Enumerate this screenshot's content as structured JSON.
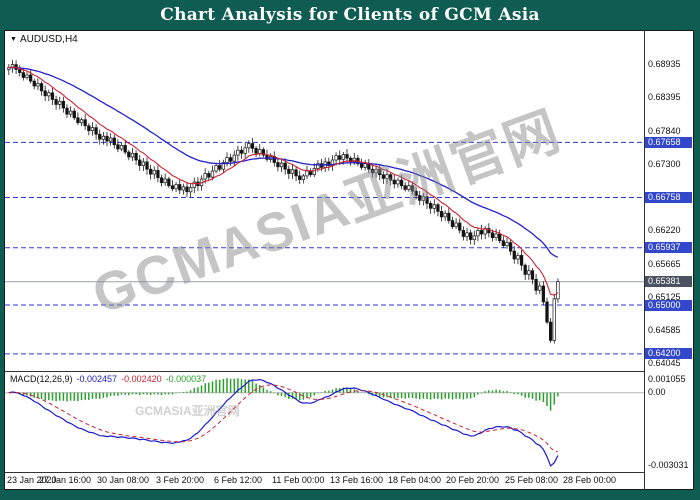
{
  "header": {
    "title": "Chart Analysis for Clients of GCM Asia"
  },
  "watermark": {
    "text": "GCMASIA亚洲官网"
  },
  "symbol_label": "AUDUSD,H4",
  "colors": {
    "banner": "#0e5c52",
    "level_line": "#2e3bd6",
    "level_box": "#3347cc",
    "current_box": "#4a5160",
    "ma_fast": "#cc2233",
    "ma_slow": "#2222cc",
    "macd_line": "#1a1acc",
    "signal_line": "#cc2233",
    "histogram": "#2ca02c",
    "bull": "#ffffff",
    "bear": "#111111",
    "watermark": "#8c8c8c"
  },
  "chart_data": {
    "type": "candlestick",
    "symbol": "AUDUSD",
    "timeframe": "H4",
    "title": "AUDUSD,H4",
    "x_labels": [
      "23 Jan 2020",
      "27 Jan 16:00",
      "30 Jan 08:00",
      "3 Feb 20:00",
      "6 Feb 12:00",
      "11 Feb 00:00",
      "13 Feb 16:00",
      "18 Feb 04:00",
      "20 Feb 20:00",
      "25 Feb 08:00",
      "28 Feb 00:00"
    ],
    "bars_per_label": 16,
    "first_open": 0.6885,
    "closes": [
      0.6888,
      0.6893,
      0.6885,
      0.688,
      0.6872,
      0.6876,
      0.6866,
      0.6858,
      0.6862,
      0.685,
      0.6842,
      0.6847,
      0.6836,
      0.6828,
      0.6833,
      0.6822,
      0.6812,
      0.6817,
      0.6806,
      0.6798,
      0.6803,
      0.6793,
      0.6785,
      0.679,
      0.6779,
      0.6771,
      0.6776,
      0.6768,
      0.6773,
      0.6762,
      0.6755,
      0.6761,
      0.675,
      0.6742,
      0.6748,
      0.6737,
      0.6728,
      0.6734,
      0.6722,
      0.6714,
      0.672,
      0.6708,
      0.67,
      0.6706,
      0.6695,
      0.669,
      0.6697,
      0.6688,
      0.6693,
      0.6685,
      0.6692,
      0.6701,
      0.6695,
      0.6706,
      0.6715,
      0.6709,
      0.6719,
      0.6728,
      0.6722,
      0.6733,
      0.6741,
      0.6735,
      0.6745,
      0.6753,
      0.6748,
      0.6757,
      0.6764,
      0.6756,
      0.6748,
      0.6754,
      0.6745,
      0.6738,
      0.6743,
      0.6733,
      0.6726,
      0.6732,
      0.6722,
      0.6715,
      0.6721,
      0.6711,
      0.6705,
      0.6711,
      0.6719,
      0.6713,
      0.6723,
      0.6731,
      0.6725,
      0.6734,
      0.6728,
      0.6737,
      0.6744,
      0.6738,
      0.6746,
      0.674,
      0.6734,
      0.674,
      0.6731,
      0.6725,
      0.6731,
      0.6722,
      0.6716,
      0.6722,
      0.6713,
      0.6707,
      0.6713,
      0.6704,
      0.6698,
      0.6704,
      0.6695,
      0.6689,
      0.6695,
      0.6686,
      0.6679,
      0.6671,
      0.6677,
      0.6666,
      0.6658,
      0.6664,
      0.6653,
      0.6644,
      0.665,
      0.6638,
      0.6628,
      0.6634,
      0.6622,
      0.6612,
      0.6618,
      0.6607,
      0.6613,
      0.6622,
      0.6616,
      0.6625,
      0.6618,
      0.661,
      0.6616,
      0.6605,
      0.6597,
      0.6602,
      0.6588,
      0.6575,
      0.6581,
      0.6565,
      0.655,
      0.6556,
      0.6542,
      0.6524,
      0.6531,
      0.6505,
      0.6472,
      0.6442,
      0.651,
      0.65381
    ],
    "price_axis": {
      "range": [
        0.6392,
        0.6948
      ],
      "plain_labels": [
        "0.68935",
        "0.68395",
        "0.67840",
        "0.67300",
        "0.66220",
        "0.65665",
        "0.65125",
        "0.64585",
        "0.64045"
      ]
    },
    "levels": [
      {
        "value": 0.67658,
        "label": "0.67658"
      },
      {
        "value": 0.66758,
        "label": "0.66758"
      },
      {
        "value": 0.65937,
        "label": "0.65937"
      },
      {
        "value": 0.65,
        "label": "0.65000"
      },
      {
        "value": 0.642,
        "label": "0.64200"
      }
    ],
    "current_price": {
      "value": 0.65381,
      "label": "0.65381"
    },
    "ma_fast_period": 10,
    "ma_slow_period": 34,
    "macd": {
      "label": "MACD(12,26,9)",
      "params": [
        12,
        26,
        9
      ],
      "values": [
        "-0.002457",
        "-0.002420",
        "-0.000037"
      ],
      "axis_labels": {
        "top": "0.001055",
        "zero": "0.00",
        "bottom": "-0.003031"
      }
    }
  }
}
